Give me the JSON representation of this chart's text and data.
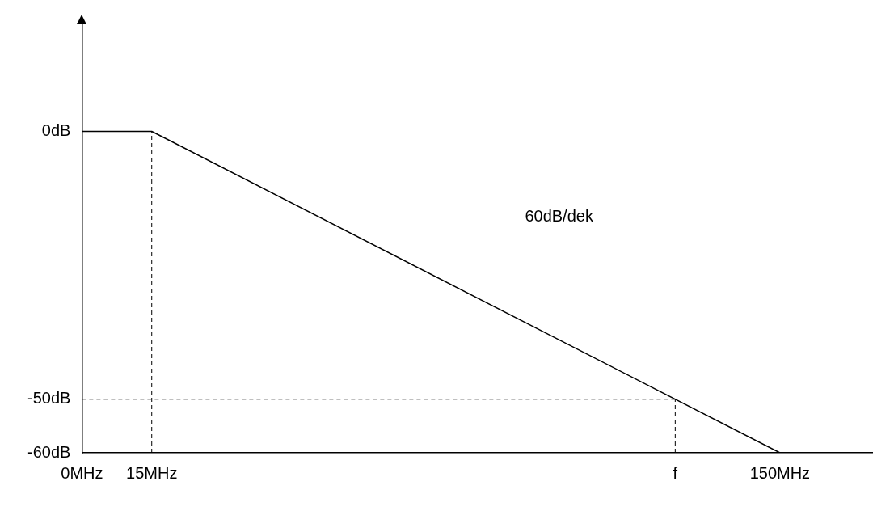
{
  "chart_data": {
    "type": "line",
    "xlim": [
      0,
      170
    ],
    "ylim": [
      -60,
      20
    ],
    "xticks": [
      {
        "value": 0,
        "label": "0MHz"
      },
      {
        "value": 15,
        "label": "15MHz"
      },
      {
        "value": 127.5,
        "label": "f"
      },
      {
        "value": 150,
        "label": "150MHz"
      }
    ],
    "yticks": [
      {
        "value": -60,
        "label": "-60dB"
      },
      {
        "value": -50,
        "label": "-50dB"
      },
      {
        "value": 0,
        "label": "0dB"
      }
    ],
    "series": [
      {
        "color": "#000000",
        "x": [
          0,
          15,
          150
        ],
        "values": [
          0,
          0,
          -60
        ],
        "line_style": "solid"
      },
      {
        "color": "#000000",
        "x": [
          15,
          15
        ],
        "values": [
          -60,
          0
        ],
        "line_style": "dashed"
      },
      {
        "color": "#000000",
        "x": [
          0,
          127.5
        ],
        "values": [
          -50,
          -50
        ],
        "line_style": "dashed"
      },
      {
        "color": "#000000",
        "x": [
          127.5,
          127.5
        ],
        "values": [
          -60,
          -50
        ],
        "line_style": "dashed"
      }
    ],
    "annotations": [
      "60dB/dek"
    ],
    "grid": false,
    "legend": false,
    "marker": "none"
  }
}
